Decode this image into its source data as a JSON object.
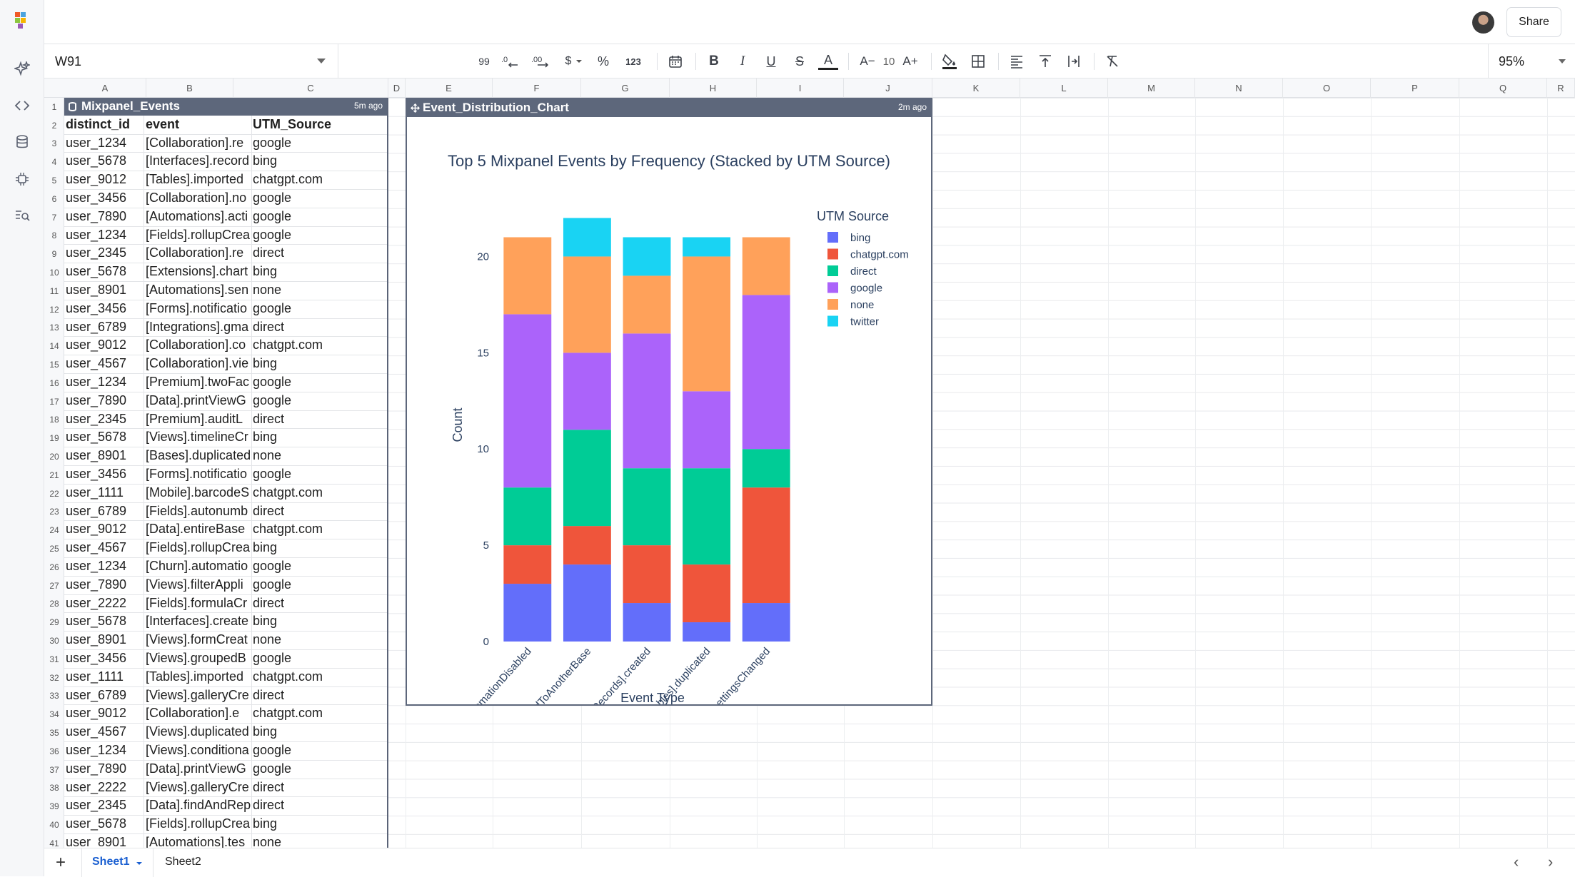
{
  "topbar": {
    "share_label": "Share"
  },
  "toolbar": {
    "cell_ref": "W91",
    "font_size": "10",
    "zoom": "95%",
    "labels": {
      "percent_format": "%",
      "number_format": "123",
      "currency": "$",
      "bold": "B",
      "italic": "I",
      "underline": "U",
      "strike": "S",
      "text_color": "A",
      "font_decrease": "A−",
      "font_increase": "A+",
      "decimal_increase": "99"
    }
  },
  "columns": [
    "A",
    "B",
    "C",
    "D",
    "E",
    "F",
    "G",
    "H",
    "I",
    "J",
    "K",
    "L",
    "M",
    "N",
    "O",
    "P",
    "Q",
    "R"
  ],
  "table": {
    "name": "Mixpanel_Events",
    "updated": "5m ago",
    "headers": [
      "distinct_id",
      "event",
      "UTM_Source"
    ],
    "rows": [
      [
        "user_1234",
        "[Collaboration].re",
        "google"
      ],
      [
        "user_5678",
        "[Interfaces].record",
        "bing"
      ],
      [
        "user_9012",
        "[Tables].imported",
        "chatgpt.com"
      ],
      [
        "user_3456",
        "[Collaboration].no",
        "google"
      ],
      [
        "user_7890",
        "[Automations].acti",
        "google"
      ],
      [
        "user_1234",
        "[Fields].rollupCrea",
        "google"
      ],
      [
        "user_2345",
        "[Collaboration].re",
        "direct"
      ],
      [
        "user_5678",
        "[Extensions].chart",
        "bing"
      ],
      [
        "user_8901",
        "[Automations].sen",
        "none"
      ],
      [
        "user_3456",
        "[Forms].notificatio",
        "google"
      ],
      [
        "user_6789",
        "[Integrations].gma",
        "direct"
      ],
      [
        "user_9012",
        "[Collaboration].co",
        "chatgpt.com"
      ],
      [
        "user_4567",
        "[Collaboration].vie",
        "bing"
      ],
      [
        "user_1234",
        "[Premium].twoFac",
        "google"
      ],
      [
        "user_7890",
        "[Data].printViewG",
        "google"
      ],
      [
        "user_2345",
        "[Premium].auditL",
        "direct"
      ],
      [
        "user_5678",
        "[Views].timelineCr",
        "bing"
      ],
      [
        "user_8901",
        "[Bases].duplicated",
        "none"
      ],
      [
        "user_3456",
        "[Forms].notificatio",
        "google"
      ],
      [
        "user_1111",
        "[Mobile].barcodeS",
        "chatgpt.com"
      ],
      [
        "user_6789",
        "[Fields].autonumb",
        "direct"
      ],
      [
        "user_9012",
        "[Data].entireBase",
        "chatgpt.com"
      ],
      [
        "user_4567",
        "[Fields].rollupCrea",
        "bing"
      ],
      [
        "user_1234",
        "[Churn].automatio",
        "google"
      ],
      [
        "user_7890",
        "[Views].filterAppli",
        "google"
      ],
      [
        "user_2222",
        "[Fields].formulaCr",
        "direct"
      ],
      [
        "user_5678",
        "[Interfaces].create",
        "bing"
      ],
      [
        "user_8901",
        "[Views].formCreat",
        "none"
      ],
      [
        "user_3456",
        "[Views].groupedB",
        "google"
      ],
      [
        "user_1111",
        "[Tables].imported",
        "chatgpt.com"
      ],
      [
        "user_6789",
        "[Views].galleryCre",
        "direct"
      ],
      [
        "user_9012",
        "[Collaboration].e",
        "chatgpt.com"
      ],
      [
        "user_4567",
        "[Views].duplicated",
        "bing"
      ],
      [
        "user_1234",
        "[Views].conditiona",
        "google"
      ],
      [
        "user_7890",
        "[Data].printViewG",
        "google"
      ],
      [
        "user_2222",
        "[Views].galleryCre",
        "direct"
      ],
      [
        "user_2345",
        "[Data].findAndRep",
        "direct"
      ],
      [
        "user_5678",
        "[Fields].rollupCrea",
        "bing"
      ],
      [
        "user_8901",
        "[Automations].tes",
        "none"
      ]
    ]
  },
  "chart_panel": {
    "name": "Event_Distribution_Chart",
    "updated": "2m ago"
  },
  "chart_data": {
    "type": "bar",
    "stacked": true,
    "title": "Top 5 Mixpanel Events by Frequency (Stacked by UTM Source)",
    "xlabel": "Event Type",
    "ylabel": "Count",
    "ylim": [
      0,
      22.5
    ],
    "yticks": [
      0,
      5,
      10,
      15,
      20
    ],
    "legend_title": "UTM Source",
    "legend_position": "top-right",
    "categories": [
      "[Churn].automationDisabled",
      "[Records].copiedToAnotherBase",
      "[Records].created",
      "[Tables].duplicated",
      "[Workspaces].settingsChanged"
    ],
    "series": [
      {
        "name": "bing",
        "color": "#636efa",
        "values": [
          3,
          4,
          2,
          1,
          2
        ]
      },
      {
        "name": "chatgpt.com",
        "color": "#ef553b",
        "values": [
          2,
          2,
          3,
          3,
          6
        ]
      },
      {
        "name": "direct",
        "color": "#00cc96",
        "values": [
          3,
          5,
          4,
          5,
          2
        ]
      },
      {
        "name": "google",
        "color": "#ab63fa",
        "values": [
          9,
          4,
          7,
          4,
          8
        ]
      },
      {
        "name": "none",
        "color": "#ffa15a",
        "values": [
          4,
          5,
          3,
          7,
          3
        ]
      },
      {
        "name": "twitter",
        "color": "#19d3f3",
        "values": [
          0,
          2,
          2,
          1,
          0
        ]
      }
    ]
  },
  "sheets": {
    "tabs": [
      "Sheet1",
      "Sheet2"
    ],
    "active": "Sheet1"
  }
}
